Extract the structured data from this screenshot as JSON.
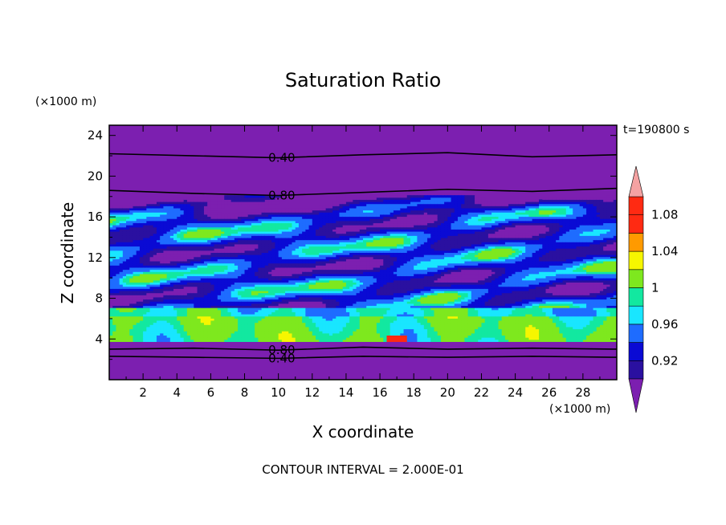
{
  "chart_data": {
    "type": "heatmap",
    "title": "Saturation Ratio",
    "xlabel": "X coordinate",
    "ylabel": "Z coordinate",
    "x_unit": "(×1000 m)",
    "y_unit": "(×1000 m)",
    "time_label": "t=190800 s",
    "footer": "CONTOUR INTERVAL = 2.000E-01",
    "xlim": [
      0,
      30
    ],
    "ylim": [
      0,
      25
    ],
    "x_ticks": [
      2,
      4,
      6,
      8,
      10,
      12,
      14,
      16,
      18,
      20,
      22,
      24,
      26,
      28
    ],
    "y_ticks": [
      4,
      8,
      12,
      16,
      20,
      24
    ],
    "colorbar": {
      "labels": [
        "0.92",
        "0.96",
        "1",
        "1.04",
        "1.08"
      ],
      "levels": [
        0.9,
        0.92,
        0.94,
        0.96,
        0.98,
        1.0,
        1.02,
        1.04,
        1.06,
        1.08,
        1.1
      ],
      "colors": [
        "#7c1fb0",
        "#2a10a0",
        "#0a0ad4",
        "#1e6cff",
        "#19e6ff",
        "#12e8a0",
        "#7ee81e",
        "#f6f600",
        "#ff9a00",
        "#ff2a12",
        "#ff2a12",
        "#f4a2a2"
      ]
    },
    "contour_lines": [
      {
        "label": "0.40",
        "z_profile": [
          [
            0,
            22.2
          ],
          [
            5,
            22.0
          ],
          [
            10,
            21.8
          ],
          [
            15,
            22.1
          ],
          [
            20,
            22.3
          ],
          [
            25,
            21.9
          ],
          [
            30,
            22.1
          ]
        ]
      },
      {
        "label": "0.80",
        "z_profile": [
          [
            0,
            18.6
          ],
          [
            5,
            18.3
          ],
          [
            10,
            18.1
          ],
          [
            15,
            18.4
          ],
          [
            20,
            18.7
          ],
          [
            25,
            18.5
          ],
          [
            30,
            18.8
          ]
        ]
      },
      {
        "label": "0.80",
        "z_profile": [
          [
            0,
            3.0
          ],
          [
            5,
            3.1
          ],
          [
            10,
            2.9
          ],
          [
            15,
            3.2
          ],
          [
            20,
            3.0
          ],
          [
            25,
            3.1
          ],
          [
            30,
            3.0
          ]
        ]
      },
      {
        "label": "0.40",
        "z_profile": [
          [
            0,
            2.3
          ],
          [
            5,
            2.2
          ],
          [
            10,
            2.1
          ],
          [
            15,
            2.3
          ],
          [
            20,
            2.2
          ],
          [
            25,
            2.3
          ],
          [
            30,
            2.2
          ]
        ]
      }
    ],
    "background_value_below_1": "#7c1fb0"
  }
}
